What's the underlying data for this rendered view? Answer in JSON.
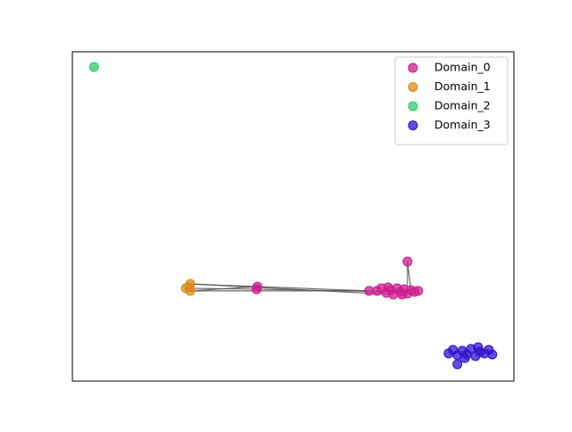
{
  "chart_data": {
    "type": "scatter",
    "xlim": [
      0,
      100
    ],
    "ylim": [
      0,
      100
    ],
    "legend": "upper right",
    "series": [
      {
        "name": "Domain_0",
        "color": "#cc1f8f",
        "x": [
          75.9,
          67.2,
          41.9,
          41.7,
          69.0,
          70.0,
          71.1,
          72.1,
          72.7,
          73.5,
          74.3,
          75.1,
          75.9,
          76.7,
          77.5,
          78.3,
          71.5,
          74.7
        ],
        "values": [
          36.3,
          27.4,
          28.7,
          27.9,
          27.4,
          28.2,
          26.8,
          27.6,
          26.3,
          28.2,
          27.1,
          27.9,
          26.6,
          27.6,
          27.1,
          27.4,
          28.5,
          26.3
        ]
      },
      {
        "name": "Domain_1",
        "color": "#d98b1a",
        "x": [
          26.7,
          25.7,
          26.7,
          26.5
        ],
        "values": [
          29.5,
          28.2,
          27.4,
          28.5
        ]
      },
      {
        "name": "Domain_2",
        "color": "#2ecc71",
        "x": [
          4.9
        ],
        "values": [
          95.4
        ]
      },
      {
        "name": "Domain_3",
        "color": "#3311cc",
        "x": [
          85.2,
          86.2,
          87.2,
          88.3,
          89.3,
          90.3,
          91.3,
          92.3,
          93.3,
          94.3,
          95.1,
          88.9,
          91.9,
          87.2
        ],
        "values": [
          8.4,
          9.5,
          7.9,
          9.2,
          8.1,
          9.8,
          7.6,
          8.9,
          8.4,
          9.5,
          8.1,
          7.0,
          10.3,
          5.1
        ]
      }
    ],
    "edges": [
      [
        [
          1,
          0
        ],
        [
          0,
          2
        ]
      ],
      [
        [
          1,
          1
        ],
        [
          0,
          3
        ]
      ],
      [
        [
          1,
          2
        ],
        [
          0,
          2
        ]
      ],
      [
        [
          1,
          0
        ],
        [
          0,
          8
        ]
      ],
      [
        [
          1,
          2
        ],
        [
          0,
          1
        ]
      ],
      [
        [
          0,
          2
        ],
        [
          0,
          1
        ]
      ],
      [
        [
          0,
          3
        ],
        [
          0,
          10
        ]
      ],
      [
        [
          0,
          0
        ],
        [
          0,
          12
        ]
      ],
      [
        [
          0,
          0
        ],
        [
          0,
          13
        ]
      ]
    ]
  }
}
